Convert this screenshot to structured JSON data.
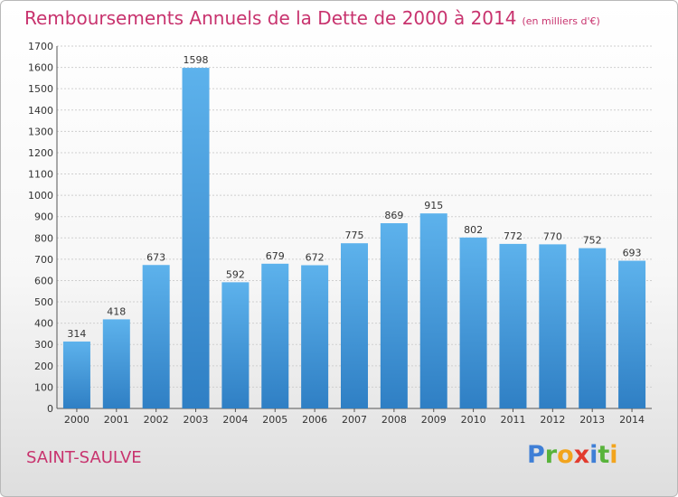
{
  "header": {
    "title": "Remboursements Annuels de la Dette de 2000 à 2014",
    "subtitle": "(en milliers d'€)"
  },
  "footer": {
    "city": "SAINT-SAULVE",
    "logo": [
      "P",
      "r",
      "o",
      "x",
      "i",
      "t",
      "i"
    ]
  },
  "colors": {
    "title": "#c8336e",
    "bar_top": "#5db2ec",
    "bar_bottom": "#2f7fc4"
  },
  "chart_data": {
    "type": "bar",
    "title": "Remboursements Annuels de la Dette de 2000 à 2014",
    "subtitle": "(en milliers d'€)",
    "categories": [
      "2000",
      "2001",
      "2002",
      "2003",
      "2004",
      "2005",
      "2006",
      "2007",
      "2008",
      "2009",
      "2010",
      "2011",
      "2012",
      "2013",
      "2014"
    ],
    "values": [
      314,
      418,
      673,
      1598,
      592,
      679,
      672,
      775,
      869,
      915,
      802,
      772,
      770,
      752,
      693
    ],
    "ylim": [
      0,
      1700
    ],
    "yticks": [
      0,
      100,
      200,
      300,
      400,
      500,
      600,
      700,
      800,
      900,
      1000,
      1100,
      1200,
      1300,
      1400,
      1500,
      1600,
      1700
    ],
    "grid": true,
    "xlabel": "",
    "ylabel": ""
  }
}
